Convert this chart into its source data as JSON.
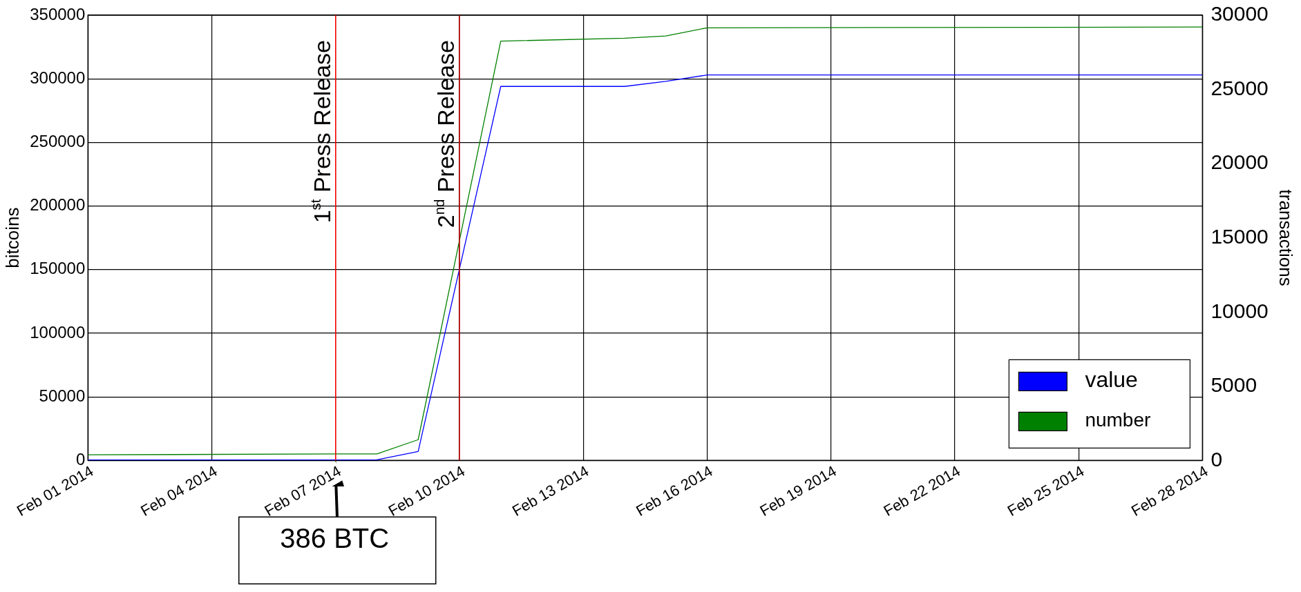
{
  "chart_data": {
    "type": "line",
    "xlabel": null,
    "ylabel": "bitcoins",
    "y2label": "transactions",
    "x": [
      "2014-02-01",
      "2014-02-07",
      "2014-02-08",
      "2014-02-09",
      "2014-02-11",
      "2014-02-14",
      "2014-02-15",
      "2014-02-16",
      "2014-02-28"
    ],
    "series": [
      {
        "name": "value",
        "color": "#0000ff",
        "values": [
          400,
          400,
          500,
          7000,
          294000,
          294000,
          298000,
          303000,
          303000
        ]
      },
      {
        "name": "number",
        "color": "#008000",
        "axis": "y2",
        "values": [
          380,
          440,
          440,
          1400,
          28250,
          28450,
          28600,
          29150,
          29200
        ]
      }
    ],
    "xlim": [
      "2014-02-01",
      "2014-02-28"
    ],
    "xticks": [
      {
        "value": "2014-02-01",
        "label": "Feb 01 2014"
      },
      {
        "value": "2014-02-04",
        "label": "Feb 04 2014"
      },
      {
        "value": "2014-02-07",
        "label": "Feb 07 2014"
      },
      {
        "value": "2014-02-10",
        "label": "Feb 10 2014"
      },
      {
        "value": "2014-02-13",
        "label": "Feb 13 2014"
      },
      {
        "value": "2014-02-16",
        "label": "Feb 16 2014"
      },
      {
        "value": "2014-02-19",
        "label": "Feb 19 2014"
      },
      {
        "value": "2014-02-22",
        "label": "Feb 22 2014"
      },
      {
        "value": "2014-02-25",
        "label": "Feb 25 2014"
      },
      {
        "value": "2014-02-28",
        "label": "Feb 28 2014"
      }
    ],
    "ylim": [
      0,
      350000
    ],
    "yticks": [
      0,
      50000,
      100000,
      150000,
      200000,
      250000,
      300000,
      350000
    ],
    "y2lim": [
      0,
      30000
    ],
    "y2ticks": [
      0,
      5000,
      10000,
      15000,
      20000,
      25000,
      30000
    ],
    "ref_lines": [
      {
        "axis": "x",
        "value": "2014-02-07",
        "label": "1$^{st}$ Press Release",
        "color": "#ff0000"
      },
      {
        "axis": "x",
        "value": "2014-02-10",
        "label": "2$^{nd}$ Press Release",
        "color": "#cc0000"
      }
    ],
    "annotations": [
      {
        "text": "386 BTC",
        "x": "2014-02-07",
        "y": 386
      }
    ],
    "grid": true,
    "legend": "bottom right",
    "marker": "none",
    "line_style": "solid"
  }
}
